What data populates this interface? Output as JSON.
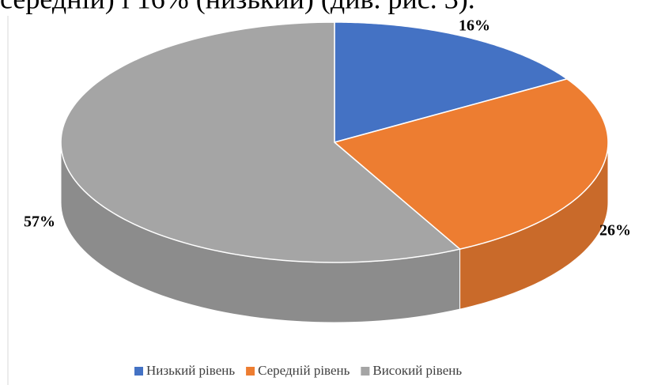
{
  "context_text": "середній) і 16% (низький) (див. рис. 3).",
  "chart_data": {
    "type": "pie3d",
    "categories": [
      "Низький рівень",
      "Середній рівень",
      "Високий рівень"
    ],
    "values": [
      16,
      26,
      57
    ],
    "value_labels": [
      "16%",
      "26%",
      "57%"
    ],
    "colors": [
      "#4472c4",
      "#ed7d31",
      "#a5a5a5"
    ],
    "legend": "bottom"
  }
}
